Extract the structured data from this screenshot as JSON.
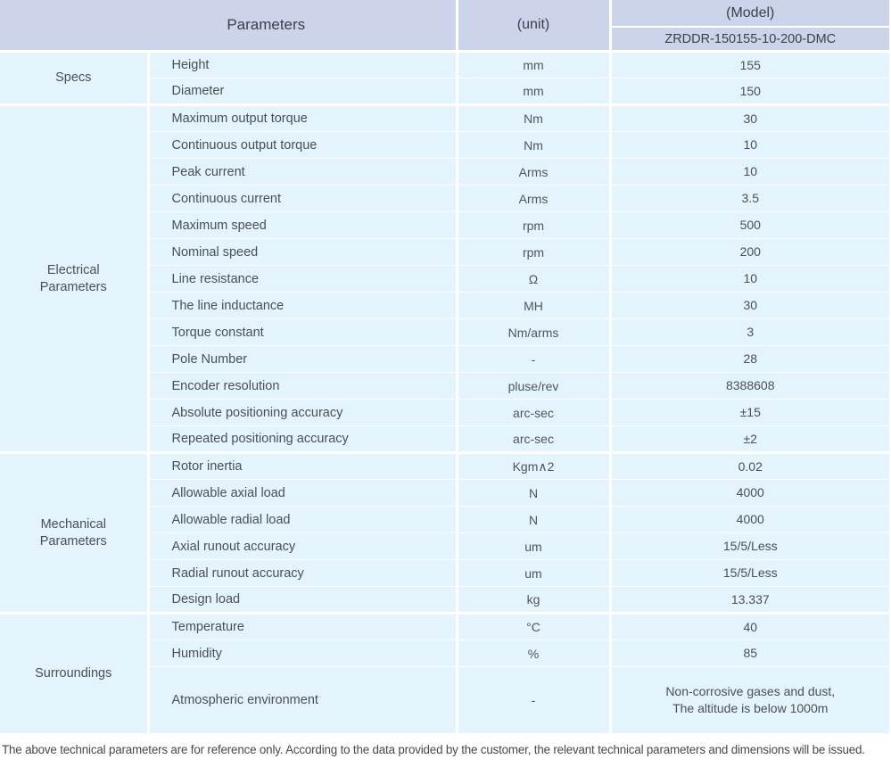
{
  "table": {
    "header": {
      "parameters_label": "Parameters",
      "unit_label": "(unit)",
      "model_label": "(Model)",
      "model_number": "ZRDDR-150155-10-200-DMC"
    },
    "colors": {
      "header_bg": "#cbd4ea",
      "row_bg": "#e3f4fc",
      "grid": "#ffffff",
      "text": "#4a4f57"
    },
    "groups": [
      {
        "name": "Specs",
        "rows": [
          {
            "parameter": "Height",
            "unit": "mm",
            "value": "155"
          },
          {
            "parameter": "Diameter",
            "unit": "mm",
            "value": "150"
          }
        ]
      },
      {
        "name": "Electrical\nParameters",
        "rows": [
          {
            "parameter": "Maximum output torque",
            "unit": "Nm",
            "value": "30"
          },
          {
            "parameter": "Continuous output torque",
            "unit": "Nm",
            "value": "10"
          },
          {
            "parameter": "Peak current",
            "unit": "Arms",
            "value": "10"
          },
          {
            "parameter": "Continuous current",
            "unit": "Arms",
            "value": "3.5"
          },
          {
            "parameter": "Maximum speed",
            "unit": "rpm",
            "value": "500"
          },
          {
            "parameter": "Nominal speed",
            "unit": "rpm",
            "value": "200"
          },
          {
            "parameter": "Line resistance",
            "unit": "Ω",
            "value": "10"
          },
          {
            "parameter": "The line inductance",
            "unit": "MH",
            "value": "30"
          },
          {
            "parameter": "Torque constant",
            "unit": "Nm/arms",
            "value": "3"
          },
          {
            "parameter": "Pole Number",
            "unit": "-",
            "value": "28"
          },
          {
            "parameter": "Encoder resolution",
            "unit": "pluse/rev",
            "value": "8388608"
          },
          {
            "parameter": "Absolute positioning accuracy",
            "unit": "arc-sec",
            "value": "±15"
          },
          {
            "parameter": "Repeated positioning accuracy",
            "unit": "arc-sec",
            "value": "±2"
          }
        ]
      },
      {
        "name": "Mechanical\nParameters",
        "rows": [
          {
            "parameter": "Rotor inertia",
            "unit": "Kgm∧2",
            "value": "0.02"
          },
          {
            "parameter": "Allowable axial load",
            "unit": "N",
            "value": "4000"
          },
          {
            "parameter": "Allowable radial load",
            "unit": "N",
            "value": "4000"
          },
          {
            "parameter": "Axial runout accuracy",
            "unit": "um",
            "value": "15/5/Less"
          },
          {
            "parameter": "Radial runout accuracy",
            "unit": "um",
            "value": "15/5/Less"
          },
          {
            "parameter": "Design load",
            "unit": "kg",
            "value": "13.337"
          }
        ]
      },
      {
        "name": "Surroundings",
        "rows": [
          {
            "parameter": "Temperature",
            "unit": "°C",
            "value": "40"
          },
          {
            "parameter": "Humidity",
            "unit": "%",
            "value": "85"
          },
          {
            "parameter": "Atmospheric environment",
            "unit": "-",
            "value": "Non-corrosive gases and dust,\nThe altitude is below 1000m",
            "tall": true
          }
        ]
      }
    ]
  },
  "footer": {
    "note": "The above technical parameters are for reference only. According to the data provided by the customer, the relevant technical parameters and dimensions will be issued."
  }
}
